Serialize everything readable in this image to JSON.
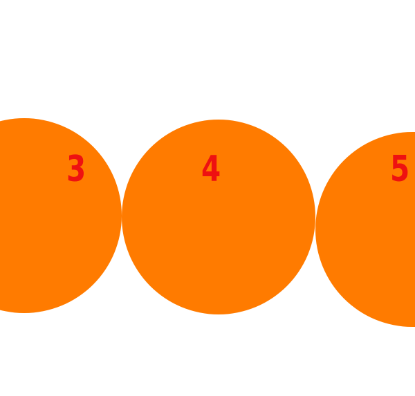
{
  "colors": {
    "background": "#ffffff",
    "circle_fill": "#ff7b00",
    "number_text": "#ee1111"
  },
  "circles": [
    {
      "label": "3"
    },
    {
      "label": "4"
    },
    {
      "label": "5"
    }
  ]
}
